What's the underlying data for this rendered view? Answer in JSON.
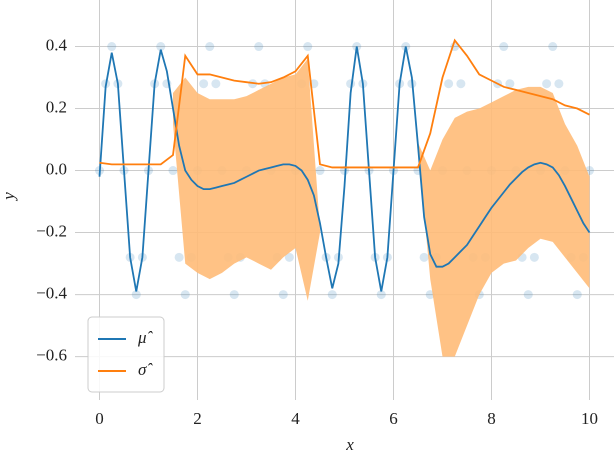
{
  "chart_data": {
    "type": "line",
    "xlabel": "x",
    "ylabel": "y",
    "xlim": [
      -0.5,
      10.5
    ],
    "ylim": [
      -0.74,
      0.55
    ],
    "xticks": [
      0,
      2,
      4,
      6,
      8,
      10
    ],
    "yticks": [
      {
        "value": -0.6,
        "label": "−0.6"
      },
      {
        "value": -0.4,
        "label": "−0.4"
      },
      {
        "value": -0.2,
        "label": "−0.2"
      },
      {
        "value": 0,
        "label": "0.0"
      },
      0.2,
      0.4
    ],
    "grid": true,
    "legend": "lower left",
    "scatter": {
      "color": "#1f77b4",
      "x": [
        0,
        0.125,
        0.25,
        0.375,
        0.5,
        0.625,
        0.75,
        0.875,
        1,
        1.125,
        1.25,
        1.375,
        1.5,
        1.625,
        1.75,
        1.875,
        2,
        2.125,
        2.25,
        2.375,
        2.5,
        2.625,
        2.75,
        2.875,
        3,
        3.125,
        3.25,
        3.375,
        3.5,
        3.625,
        3.75,
        3.875,
        4,
        4.125,
        4.25,
        4.375,
        4.5,
        4.625,
        4.75,
        4.875,
        5,
        5.125,
        5.25,
        5.375,
        5.5,
        5.625,
        5.75,
        5.875,
        6,
        6.125,
        6.25,
        6.375,
        6.5,
        6.625,
        6.75,
        6.875,
        7,
        7.125,
        7.25,
        7.375,
        7.5,
        7.625,
        7.75,
        7.875,
        8,
        8.125,
        8.25,
        8.375,
        8.5,
        8.625,
        8.75,
        8.875,
        9,
        9.125,
        9.25,
        9.375,
        9.5,
        9.625,
        9.75,
        9.875,
        10
      ],
      "values": [
        0,
        0.28,
        0.4,
        0.28,
        0,
        -0.28,
        -0.4,
        -0.28,
        0,
        0.28,
        0.4,
        0.28,
        0,
        -0.28,
        -0.4,
        -0.28,
        0,
        0.28,
        0.4,
        0.28,
        0,
        -0.28,
        -0.4,
        -0.28,
        0,
        0.28,
        0.4,
        0.28,
        0,
        -0.28,
        -0.4,
        -0.28,
        0,
        0.28,
        0.4,
        0.28,
        0,
        -0.28,
        -0.4,
        -0.28,
        0,
        0.28,
        0.4,
        0.28,
        0,
        -0.28,
        -0.4,
        -0.28,
        0,
        0.28,
        0.4,
        0.28,
        0,
        -0.28,
        -0.4,
        -0.28,
        0,
        0.28,
        0.4,
        0.28,
        0,
        -0.28,
        -0.4,
        -0.28,
        0,
        0.28,
        0.4,
        0.28,
        0,
        -0.28,
        -0.4,
        -0.28,
        0,
        0.28,
        0.4,
        0.28,
        0,
        -0.28,
        -0.4,
        -0.28,
        0
      ]
    },
    "band": {
      "color": "#ffbb78",
      "x": [
        0,
        0.25,
        0.5,
        0.75,
        1,
        1.25,
        1.5,
        1.75,
        2,
        2.25,
        2.5,
        2.75,
        3,
        3.25,
        3.5,
        3.75,
        4,
        4.25,
        4.5,
        4.75,
        5,
        5.25,
        5.5,
        5.75,
        6,
        6.25,
        6.5,
        6.75,
        7,
        7.25,
        7.5,
        7.75,
        8,
        8.25,
        8.5,
        8.75,
        9,
        9.25,
        9.5,
        9.75,
        10
      ],
      "upper": [
        null,
        null,
        null,
        null,
        null,
        null,
        0.25,
        0.3,
        0.25,
        0.23,
        0.23,
        0.23,
        0.24,
        0.26,
        0.28,
        0.3,
        0.31,
        0.36,
        -0.19,
        null,
        null,
        null,
        null,
        null,
        null,
        null,
        0.09,
        0,
        0.1,
        0.17,
        0.19,
        0.2,
        0.22,
        0.24,
        0.26,
        0.27,
        0.27,
        0.25,
        0.15,
        0.08,
        -0.02
      ],
      "lower": [
        null,
        null,
        null,
        null,
        null,
        null,
        0.15,
        -0.3,
        -0.33,
        -0.35,
        -0.33,
        -0.3,
        -0.28,
        -0.3,
        -0.32,
        -0.28,
        -0.25,
        -0.42,
        -0.2,
        null,
        null,
        null,
        null,
        null,
        null,
        null,
        0.07,
        -0.35,
        -0.6,
        -0.6,
        -0.5,
        -0.4,
        -0.33,
        -0.3,
        -0.29,
        -0.25,
        -0.22,
        -0.23,
        -0.28,
        -0.33,
        -0.38
      ]
    },
    "series": [
      {
        "name": "μ̂",
        "color": "#1f77b4",
        "x": [
          0,
          0.125,
          0.25,
          0.375,
          0.5,
          0.625,
          0.75,
          0.875,
          1,
          1.125,
          1.25,
          1.375,
          1.5,
          1.625,
          1.75,
          1.875,
          2,
          2.125,
          2.25,
          2.375,
          2.5,
          2.625,
          2.75,
          2.875,
          3,
          3.125,
          3.25,
          3.375,
          3.5,
          3.625,
          3.75,
          3.875,
          4,
          4.125,
          4.25,
          4.375,
          4.5,
          4.625,
          4.75,
          4.875,
          5,
          5.125,
          5.25,
          5.375,
          5.5,
          5.625,
          5.75,
          5.875,
          6,
          6.125,
          6.25,
          6.375,
          6.5,
          6.625,
          6.75,
          6.875,
          7,
          7.125,
          7.25,
          7.375,
          7.5,
          7.625,
          7.75,
          7.875,
          8,
          8.125,
          8.25,
          8.375,
          8.5,
          8.625,
          8.75,
          8.875,
          9,
          9.125,
          9.25,
          9.375,
          9.5,
          9.625,
          9.75,
          9.875,
          10
        ],
        "values": [
          -0.02,
          0.27,
          0.38,
          0.28,
          0,
          -0.28,
          -0.39,
          -0.28,
          0,
          0.28,
          0.39,
          0.32,
          0.2,
          0.08,
          0,
          -0.03,
          -0.05,
          -0.06,
          -0.06,
          -0.055,
          -0.05,
          -0.045,
          -0.04,
          -0.03,
          -0.02,
          -0.01,
          0,
          0.005,
          0.01,
          0.015,
          0.02,
          0.02,
          0.015,
          0,
          -0.03,
          -0.08,
          -0.17,
          -0.28,
          -0.38,
          -0.3,
          -0.05,
          0.25,
          0.4,
          0.28,
          0,
          -0.28,
          -0.39,
          -0.28,
          0,
          0.28,
          0.4,
          0.3,
          0.08,
          -0.15,
          -0.27,
          -0.31,
          -0.31,
          -0.3,
          -0.28,
          -0.26,
          -0.24,
          -0.21,
          -0.18,
          -0.15,
          -0.12,
          -0.095,
          -0.07,
          -0.045,
          -0.025,
          -0.005,
          0.01,
          0.02,
          0.025,
          0.02,
          0.01,
          -0.015,
          -0.05,
          -0.09,
          -0.13,
          -0.17,
          -0.2
        ]
      },
      {
        "name": "σ̂",
        "color": "#ff7f0e",
        "x": [
          0,
          0.25,
          0.5,
          0.75,
          1,
          1.25,
          1.5,
          1.75,
          2,
          2.25,
          2.5,
          2.75,
          3,
          3.25,
          3.5,
          3.75,
          4,
          4.25,
          4.5,
          4.75,
          5,
          5.25,
          5.5,
          5.75,
          6,
          6.25,
          6.5,
          6.75,
          7,
          7.25,
          7.5,
          7.75,
          8,
          8.25,
          8.5,
          8.75,
          9,
          9.25,
          9.5,
          9.75,
          10
        ],
        "values": [
          0.025,
          0.02,
          0.02,
          0.02,
          0.02,
          0.02,
          0.05,
          0.37,
          0.31,
          0.31,
          0.3,
          0.29,
          0.285,
          0.28,
          0.285,
          0.3,
          0.32,
          0.37,
          0.02,
          0.01,
          0.01,
          0.01,
          0.01,
          0.01,
          0.01,
          0.01,
          0.01,
          0.12,
          0.3,
          0.42,
          0.37,
          0.31,
          0.29,
          0.27,
          0.26,
          0.25,
          0.24,
          0.23,
          0.21,
          0.2,
          0.18
        ]
      }
    ]
  }
}
